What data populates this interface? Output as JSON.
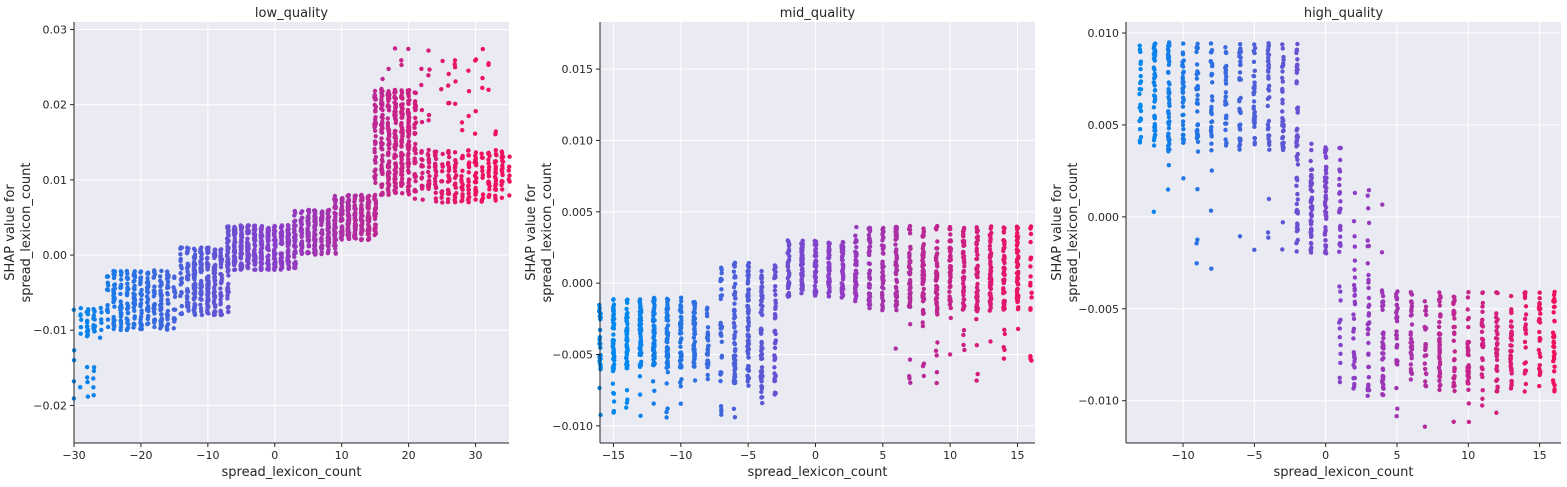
{
  "colors": {
    "background": "#eaeaf2",
    "grid": "#ffffff",
    "low": "#0088ee",
    "mid": "#8a3fc9",
    "high": "#f0115e"
  },
  "chart_data": [
    {
      "type": "scatter",
      "title": "low_quality",
      "xlabel": "spread_lexicon_count",
      "ylabel_lines": [
        "SHAP value for",
        "spread_lexicon_count"
      ],
      "xlim": [
        -30,
        35
      ],
      "ylim": [
        -0.025,
        0.031
      ],
      "xticks": [
        -30,
        -20,
        -10,
        0,
        10,
        20,
        30
      ],
      "xtick_labels": [
        "−30",
        "−20",
        "−10",
        "0",
        "10",
        "20",
        "30"
      ],
      "yticks": [
        -0.02,
        -0.01,
        0.0,
        0.01,
        0.02,
        0.03
      ],
      "ytick_labels": [
        "−0.02",
        "−0.01",
        "0.00",
        "0.01",
        "0.02",
        "0.03"
      ],
      "grid": true,
      "color_range": [
        -30,
        30
      ],
      "clusters": [
        {
          "x": [
            -30,
            -30
          ],
          "y": [
            -0.021,
            -0.007
          ],
          "n": 5
        },
        {
          "x": [
            -29,
            -26
          ],
          "y": [
            -0.011,
            -0.007
          ],
          "n": 40
        },
        {
          "x": [
            -29,
            -27
          ],
          "y": [
            -0.021,
            -0.014
          ],
          "n": 10
        },
        {
          "x": [
            -25,
            -15
          ],
          "y": [
            -0.01,
            -0.002
          ],
          "n": 300
        },
        {
          "x": [
            -14,
            -7
          ],
          "y": [
            -0.008,
            0.001
          ],
          "n": 320
        },
        {
          "x": [
            -7,
            3
          ],
          "y": [
            -0.002,
            0.004
          ],
          "n": 500
        },
        {
          "x": [
            3,
            9
          ],
          "y": [
            0.0,
            0.006
          ],
          "n": 250
        },
        {
          "x": [
            9,
            15
          ],
          "y": [
            0.002,
            0.008
          ],
          "n": 300
        },
        {
          "x": [
            15,
            21
          ],
          "y": [
            0.008,
            0.022
          ],
          "n": 380
        },
        {
          "x": [
            21,
            35
          ],
          "y": [
            0.007,
            0.014
          ],
          "n": 260
        },
        {
          "x": [
            16,
            33
          ],
          "y": [
            0.016,
            0.028
          ],
          "n": 55
        }
      ]
    },
    {
      "type": "scatter",
      "title": "mid_quality",
      "xlabel": "spread_lexicon_count",
      "ylabel_lines": [
        "SHAP value for",
        "spread_lexicon_count"
      ],
      "xlim": [
        -16,
        16.3
      ],
      "ylim": [
        -0.0112,
        0.0183
      ],
      "xticks": [
        -15,
        -10,
        -5,
        0,
        5,
        10,
        15
      ],
      "xtick_labels": [
        "−15",
        "−10",
        "−5",
        "0",
        "5",
        "10",
        "15"
      ],
      "yticks": [
        -0.01,
        -0.005,
        0.0,
        0.005,
        0.01,
        0.015
      ],
      "ytick_labels": [
        "−0.010",
        "−0.005",
        "0.000",
        "0.005",
        "0.010",
        "0.015"
      ],
      "grid": true,
      "color_range": [
        -14,
        16
      ],
      "clusters": [
        {
          "x": [
            -16,
            -8
          ],
          "y": [
            -0.006,
            -0.001
          ],
          "n": 420
        },
        {
          "x": [
            -16,
            -6
          ],
          "y": [
            -0.0095,
            -0.006
          ],
          "n": 40
        },
        {
          "x": [
            -7,
            -3
          ],
          "y": [
            -0.007,
            0.0015
          ],
          "n": 240
        },
        {
          "x": [
            -6,
            -3
          ],
          "y": [
            -0.0085,
            -0.006
          ],
          "n": 20
        },
        {
          "x": [
            -2,
            3
          ],
          "y": [
            -0.001,
            0.003
          ],
          "n": 260
        },
        {
          "x": [
            3,
            16
          ],
          "y": [
            -0.002,
            0.004
          ],
          "n": 620
        },
        {
          "x": [
            6,
            16
          ],
          "y": [
            -0.007,
            -0.002
          ],
          "n": 40
        }
      ]
    },
    {
      "type": "scatter",
      "title": "high_quality",
      "xlabel": "spread_lexicon_count",
      "ylabel_lines": [
        "SHAP value for",
        "spread_lexicon_count"
      ],
      "xlim": [
        -14,
        16.5
      ],
      "ylim": [
        -0.0123,
        0.0106
      ],
      "xticks": [
        -10,
        -5,
        0,
        5,
        10,
        15
      ],
      "xtick_labels": [
        "−10",
        "−5",
        "0",
        "5",
        "10",
        "15"
      ],
      "yticks": [
        -0.01,
        -0.005,
        0.0,
        0.005,
        0.01
      ],
      "ytick_labels": [
        "−0.010",
        "−0.005",
        "0.000",
        "0.005",
        "0.010"
      ],
      "grid": true,
      "color_range": [
        -13,
        16
      ],
      "clusters": [
        {
          "x": [
            -13,
            -2
          ],
          "y": [
            0.0035,
            0.0095
          ],
          "n": 420
        },
        {
          "x": [
            -12,
            -2
          ],
          "y": [
            -0.003,
            0.003
          ],
          "n": 18
        },
        {
          "x": [
            -2,
            1
          ],
          "y": [
            -0.002,
            0.004
          ],
          "n": 150
        },
        {
          "x": [
            1,
            4
          ],
          "y": [
            -0.004,
            0.0015
          ],
          "n": 25
        },
        {
          "x": [
            1,
            16.5
          ],
          "y": [
            -0.0095,
            -0.004
          ],
          "n": 460
        },
        {
          "x": [
            3,
            12
          ],
          "y": [
            -0.0115,
            -0.0095
          ],
          "n": 12
        }
      ]
    }
  ]
}
